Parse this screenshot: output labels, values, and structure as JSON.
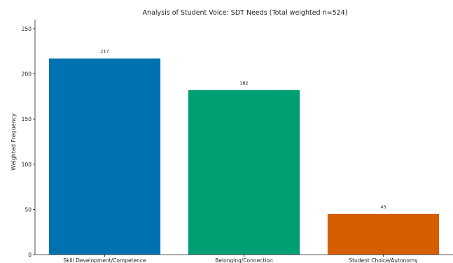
{
  "chart_data": {
    "type": "bar",
    "title": "Analysis of Student Voice: SDT Needs (Total weighted n=524)",
    "xlabel": "",
    "ylabel": "Weighted Frequency",
    "categories": [
      "Skill Development/Competence",
      "Belonging/Connection",
      "Student Choice/Autonomy"
    ],
    "values": [
      217,
      182,
      45
    ],
    "data_labels": [
      "217",
      "182",
      "45"
    ],
    "colors": [
      "#0072B2",
      "#009E73",
      "#D55E00"
    ],
    "ylim": [
      0,
      260
    ],
    "yticks": [
      0,
      50,
      100,
      150,
      200,
      250
    ],
    "grid": false,
    "legend": "none"
  }
}
